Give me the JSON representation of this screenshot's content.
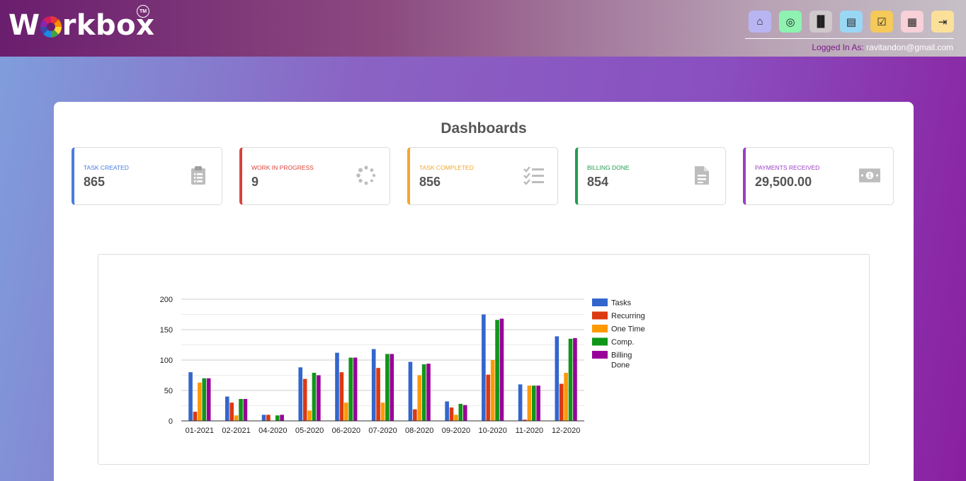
{
  "brand": {
    "name_prefix": "W",
    "name_suffix": "rkbox",
    "tm": "TM"
  },
  "header": {
    "icons": [
      {
        "name": "home-icon",
        "glyph": "⌂",
        "bg": "#b9b5f2"
      },
      {
        "name": "globe-icon",
        "glyph": "◎",
        "bg": "#8ef2b0"
      },
      {
        "name": "users-icon",
        "glyph": "▐▌",
        "bg": "#cfc9cc"
      },
      {
        "name": "document-icon",
        "glyph": "▤",
        "bg": "#9ad7f5"
      },
      {
        "name": "checklist-icon",
        "glyph": "☑",
        "bg": "#f5c95a"
      },
      {
        "name": "apps-grid-icon",
        "glyph": "▦",
        "bg": "#f7d0d8"
      },
      {
        "name": "logout-icon",
        "glyph": "⇥",
        "bg": "#fbe09a"
      }
    ],
    "logged_in_label": "Logged In As:",
    "logged_in_email": "ravitandon@gmail.com"
  },
  "page": {
    "title": "Dashboards"
  },
  "stats": [
    {
      "label": "Task Created",
      "value": "865",
      "color": "#4a7be0",
      "icon": "clipboard-icon"
    },
    {
      "label": "Work In Progress",
      "value": "9",
      "color": "#d9433b",
      "icon": "spinner-icon"
    },
    {
      "label": "Task Completed",
      "value": "856",
      "color": "#f2a72b",
      "icon": "task-list-icon"
    },
    {
      "label": "Billing Done",
      "value": "854",
      "color": "#1f9e4f",
      "icon": "invoice-icon"
    },
    {
      "label": "Payments Received",
      "value": "29,500.00",
      "color": "#9b3fc0",
      "icon": "money-icon"
    }
  ],
  "chart_data": {
    "type": "bar",
    "categories": [
      "01-2021",
      "02-2021",
      "04-2020",
      "05-2020",
      "06-2020",
      "07-2020",
      "08-2020",
      "09-2020",
      "10-2020",
      "11-2020",
      "12-2020"
    ],
    "series": [
      {
        "name": "Tasks",
        "color": "#3366cc",
        "values": [
          80,
          40,
          10,
          88,
          112,
          118,
          97,
          32,
          175,
          60,
          139
        ]
      },
      {
        "name": "Recurring",
        "color": "#dc3912",
        "values": [
          15,
          30,
          10,
          69,
          80,
          87,
          19,
          22,
          76,
          2,
          61
        ]
      },
      {
        "name": "One Time",
        "color": "#ff9900",
        "values": [
          63,
          9,
          0,
          17,
          30,
          30,
          75,
          10,
          100,
          58,
          79
        ]
      },
      {
        "name": "Comp.",
        "color": "#109618",
        "values": [
          70,
          36,
          9,
          79,
          104,
          110,
          93,
          28,
          166,
          58,
          135
        ]
      },
      {
        "name": "Billing Done",
        "color": "#990099",
        "values": [
          70,
          36,
          10,
          75,
          104,
          110,
          94,
          26,
          168,
          58,
          136
        ]
      }
    ],
    "yticks": [
      "0",
      "50",
      "100",
      "150",
      "200"
    ],
    "ylim": [
      0,
      200
    ],
    "grid": true,
    "legend_position": "right"
  }
}
